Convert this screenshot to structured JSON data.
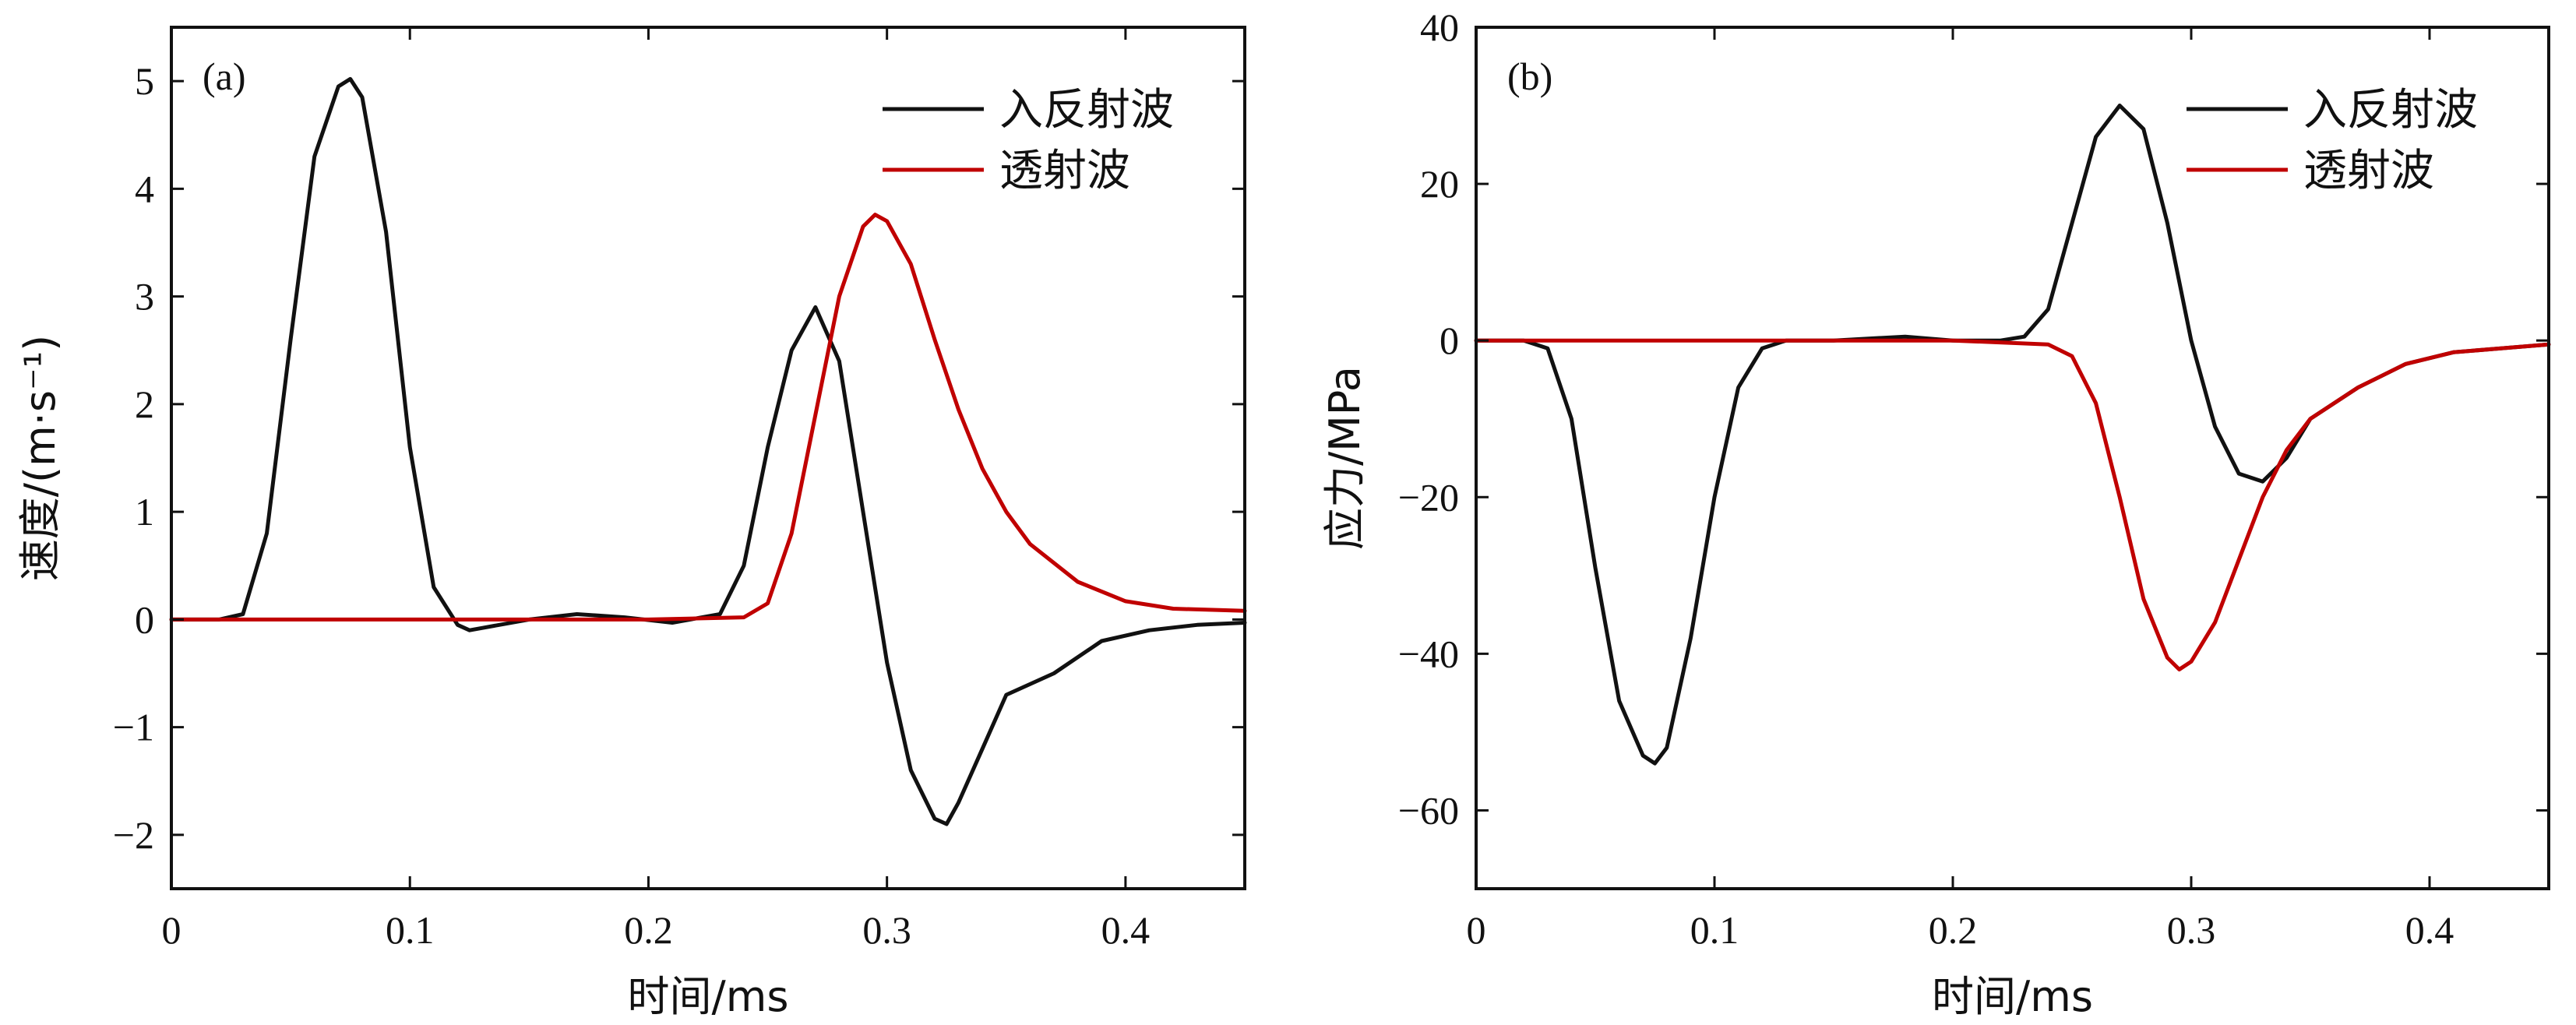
{
  "colors": {
    "incident_reflected": "#111111",
    "transmitted": "#c00000"
  },
  "chart_data": [
    {
      "type": "line",
      "panel_label": "(a)",
      "xlabel": "时间/ms",
      "ylabel": "速度/(m·s⁻¹)",
      "xlim": [
        0,
        0.45
      ],
      "ylim": [
        -2.5,
        5.5
      ],
      "xticks": [
        0,
        0.1,
        0.2,
        0.3,
        0.4
      ],
      "xtick_labels": [
        "0",
        "0.1",
        "0.2",
        "0.3",
        "0.4"
      ],
      "yticks": [
        -2,
        -1,
        0,
        1,
        2,
        3,
        4,
        5
      ],
      "ytick_labels": [
        "−2",
        "−1",
        "0",
        "1",
        "2",
        "3",
        "4",
        "5"
      ],
      "legend_position": "top-right",
      "series": [
        {
          "name": "入反射波",
          "color_key": "incident_reflected",
          "x": [
            0,
            0.02,
            0.03,
            0.04,
            0.05,
            0.06,
            0.07,
            0.075,
            0.08,
            0.09,
            0.1,
            0.11,
            0.12,
            0.125,
            0.13,
            0.15,
            0.17,
            0.19,
            0.21,
            0.23,
            0.24,
            0.25,
            0.26,
            0.27,
            0.28,
            0.29,
            0.3,
            0.31,
            0.32,
            0.325,
            0.33,
            0.34,
            0.35,
            0.37,
            0.39,
            0.41,
            0.43,
            0.45
          ],
          "y": [
            0,
            0,
            0.05,
            0.8,
            2.6,
            4.3,
            4.95,
            5.02,
            4.85,
            3.6,
            1.6,
            0.3,
            -0.05,
            -0.1,
            -0.08,
            0.0,
            0.05,
            0.02,
            -0.03,
            0.05,
            0.5,
            1.6,
            2.5,
            2.9,
            2.4,
            1.0,
            -0.4,
            -1.4,
            -1.85,
            -1.9,
            -1.7,
            -1.2,
            -0.7,
            -0.5,
            -0.2,
            -0.1,
            -0.05,
            -0.03
          ]
        },
        {
          "name": "透射波",
          "color_key": "transmitted",
          "x": [
            0,
            0.2,
            0.24,
            0.25,
            0.26,
            0.27,
            0.28,
            0.29,
            0.295,
            0.3,
            0.31,
            0.32,
            0.33,
            0.34,
            0.35,
            0.36,
            0.38,
            0.4,
            0.42,
            0.45
          ],
          "y": [
            0,
            0,
            0.02,
            0.15,
            0.8,
            1.9,
            3.0,
            3.65,
            3.76,
            3.7,
            3.3,
            2.6,
            1.95,
            1.4,
            1.0,
            0.7,
            0.35,
            0.17,
            0.1,
            0.08
          ]
        }
      ]
    },
    {
      "type": "line",
      "panel_label": "(b)",
      "xlabel": "时间/ms",
      "ylabel": "应力/MPa",
      "xlim": [
        0,
        0.45
      ],
      "ylim": [
        -70,
        40
      ],
      "xticks": [
        0,
        0.1,
        0.2,
        0.3,
        0.4
      ],
      "xtick_labels": [
        "0",
        "0.1",
        "0.2",
        "0.3",
        "0.4"
      ],
      "yticks": [
        -60,
        -40,
        -20,
        0,
        20,
        40
      ],
      "ytick_labels": [
        "−60",
        "−40",
        "−20",
        "0",
        "20",
        "40"
      ],
      "legend_position": "top-right",
      "series": [
        {
          "name": "入反射波",
          "color_key": "incident_reflected",
          "x": [
            0,
            0.02,
            0.03,
            0.04,
            0.05,
            0.06,
            0.07,
            0.075,
            0.08,
            0.09,
            0.1,
            0.11,
            0.12,
            0.13,
            0.15,
            0.18,
            0.2,
            0.22,
            0.23,
            0.24,
            0.25,
            0.26,
            0.27,
            0.28,
            0.29,
            0.3,
            0.31,
            0.32,
            0.33,
            0.34,
            0.35,
            0.37,
            0.39,
            0.41,
            0.43,
            0.45
          ],
          "y": [
            0,
            0,
            -1,
            -10,
            -29,
            -46,
            -53,
            -54,
            -52,
            -38,
            -20,
            -6,
            -1,
            0,
            0,
            0.5,
            0,
            0,
            0.5,
            4,
            15,
            26,
            30,
            27,
            15,
            0,
            -11,
            -17,
            -18,
            -15,
            -10,
            -6,
            -3,
            -1.5,
            -1,
            -0.5
          ]
        },
        {
          "name": "透射波",
          "color_key": "transmitted",
          "x": [
            0,
            0.2,
            0.24,
            0.25,
            0.26,
            0.27,
            0.28,
            0.29,
            0.295,
            0.3,
            0.31,
            0.32,
            0.33,
            0.34,
            0.35,
            0.37,
            0.39,
            0.41,
            0.43,
            0.45
          ],
          "y": [
            0,
            0,
            -0.5,
            -2,
            -8,
            -20,
            -33,
            -40.5,
            -42,
            -41,
            -36,
            -28,
            -20,
            -14,
            -10,
            -6,
            -3,
            -1.5,
            -1,
            -0.5
          ]
        }
      ]
    }
  ]
}
